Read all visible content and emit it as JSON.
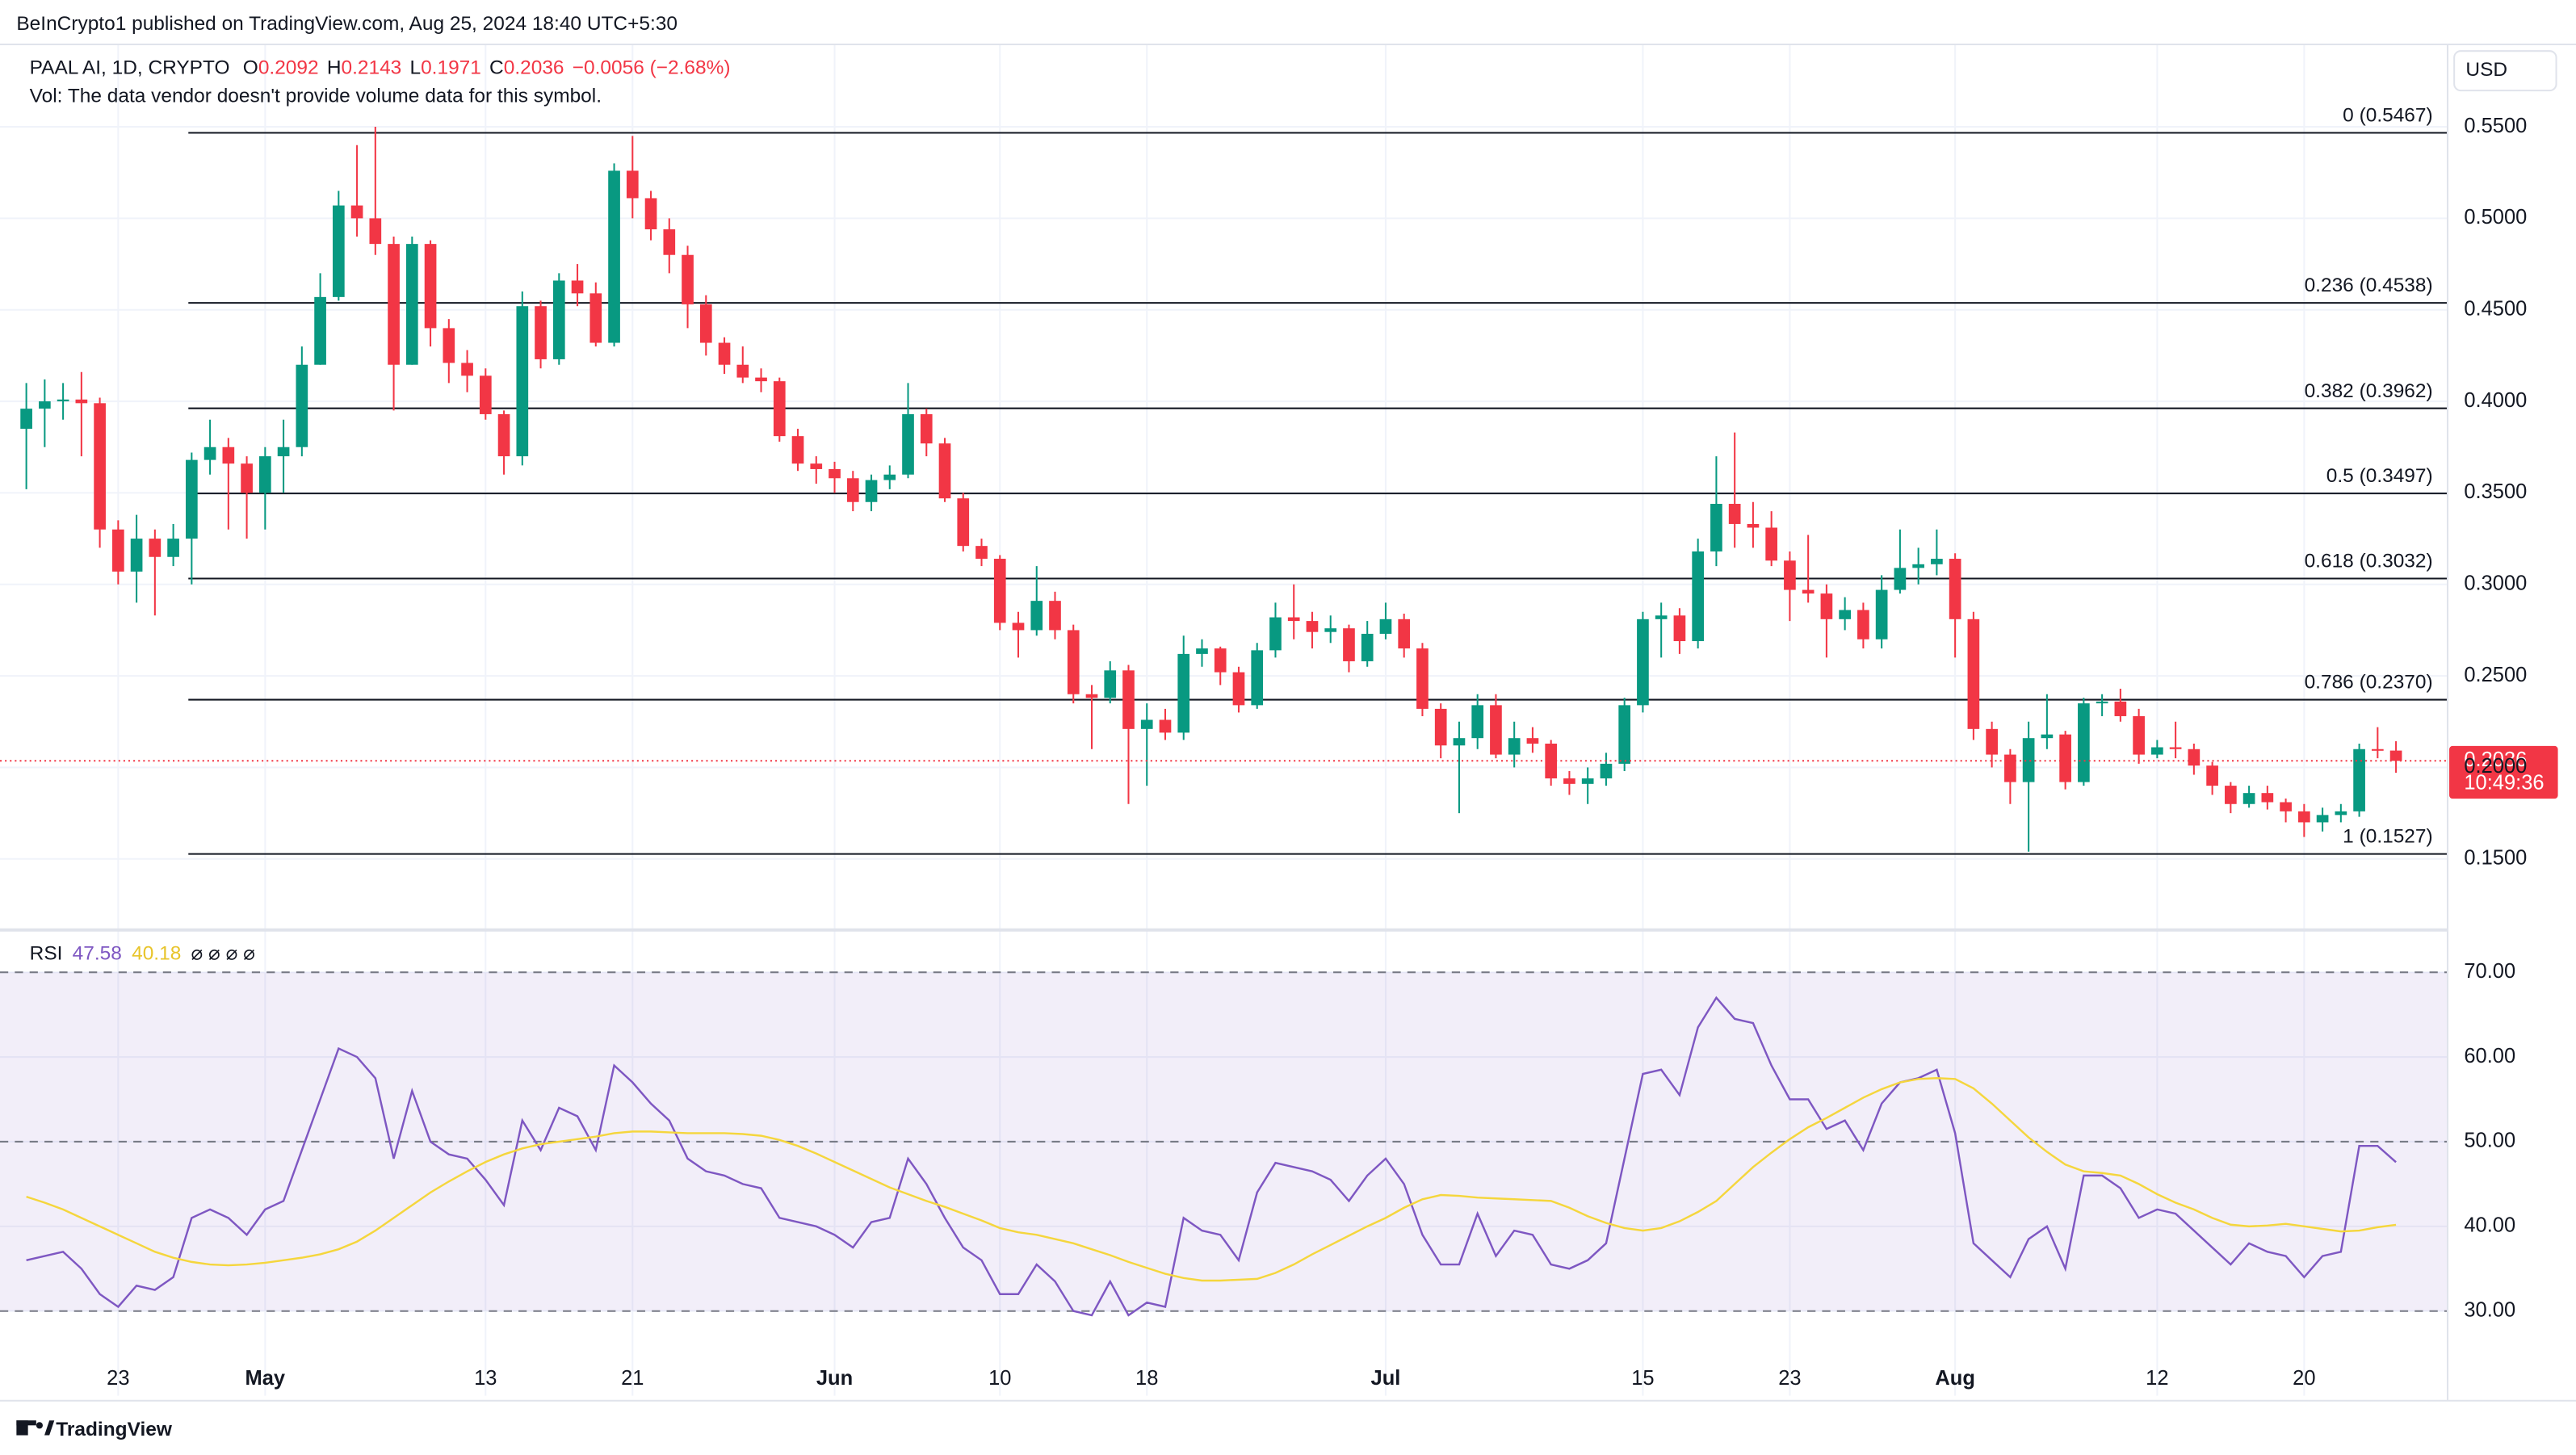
{
  "header": {
    "publisher": "BeInCrypto1 published on TradingView.com, Aug 25, 2024 18:40 UTC+5:30",
    "symbol": "PAAL AI, 1D, CRYPTO",
    "ohlc_keys": [
      "O",
      "H",
      "L",
      "C"
    ],
    "change": "−0.0056 (−2.68%)",
    "volume_note": "Vol: The data vendor doesn't provide volume data for this symbol.",
    "currency": "USD",
    "countdown": "10:49:36",
    "brand": "TradingView"
  },
  "chart_data": [
    {
      "type": "candlestick",
      "categories": [
        null,
        null,
        null,
        null,
        null,
        "23",
        null,
        null,
        null,
        null,
        null,
        null,
        null,
        "May",
        null,
        null,
        null,
        null,
        null,
        null,
        null,
        null,
        null,
        null,
        null,
        "13",
        null,
        null,
        null,
        null,
        null,
        null,
        null,
        "21",
        null,
        null,
        null,
        null,
        null,
        null,
        null,
        null,
        null,
        null,
        "Jun",
        null,
        null,
        null,
        null,
        null,
        null,
        null,
        null,
        "10",
        null,
        null,
        null,
        null,
        null,
        null,
        null,
        "18",
        null,
        null,
        null,
        null,
        null,
        null,
        null,
        null,
        null,
        null,
        null,
        null,
        "Jul",
        null,
        null,
        null,
        null,
        null,
        null,
        null,
        null,
        null,
        null,
        null,
        null,
        null,
        "15",
        null,
        null,
        null,
        null,
        null,
        null,
        null,
        "23",
        null,
        null,
        null,
        null,
        null,
        null,
        null,
        null,
        "Aug",
        null,
        null,
        null,
        null,
        null,
        null,
        null,
        null,
        null,
        null,
        "12",
        null,
        null,
        null,
        null,
        null,
        null,
        null,
        "20",
        null,
        null,
        null,
        null,
        null
      ],
      "open": [
        0.385,
        0.396,
        0.4,
        0.401,
        0.399,
        0.33,
        0.307,
        0.325,
        0.315,
        0.325,
        0.368,
        0.375,
        0.366,
        0.35,
        0.37,
        0.375,
        0.42,
        0.457,
        0.507,
        0.5,
        0.486,
        0.42,
        0.486,
        0.44,
        0.421,
        0.414,
        0.393,
        0.37,
        0.452,
        0.423,
        0.466,
        0.459,
        0.432,
        0.526,
        0.511,
        0.494,
        0.48,
        0.453,
        0.432,
        0.42,
        0.413,
        0.411,
        0.381,
        0.366,
        0.363,
        0.358,
        0.345,
        0.357,
        0.36,
        0.393,
        0.377,
        0.347,
        0.321,
        0.314,
        0.279,
        0.275,
        0.291,
        0.275,
        0.24,
        0.238,
        0.253,
        0.221,
        0.226,
        0.219,
        0.262,
        0.265,
        0.252,
        0.234,
        0.264,
        0.282,
        0.28,
        0.274,
        0.276,
        0.258,
        0.273,
        0.281,
        0.265,
        0.232,
        0.212,
        0.216,
        0.234,
        0.207,
        0.216,
        0.213,
        0.194,
        0.191,
        0.194,
        0.202,
        0.234,
        0.281,
        0.283,
        0.269,
        0.318,
        0.344,
        0.333,
        0.331,
        0.313,
        0.297,
        0.295,
        0.281,
        0.286,
        0.27,
        0.297,
        0.309,
        0.311,
        0.314,
        0.281,
        0.221,
        0.207,
        0.192,
        0.216,
        0.218,
        0.192,
        0.235,
        0.236,
        0.228,
        0.207,
        0.211,
        0.21,
        0.201,
        0.19,
        0.18,
        0.186,
        0.181,
        0.176,
        0.17,
        0.174,
        0.176,
        0.21,
        0.2092
      ],
      "high": [
        0.41,
        0.412,
        0.41,
        0.416,
        0.402,
        0.335,
        0.338,
        0.33,
        0.333,
        0.372,
        0.39,
        0.38,
        0.37,
        0.375,
        0.39,
        0.43,
        0.47,
        0.515,
        0.54,
        0.55,
        0.49,
        0.49,
        0.488,
        0.445,
        0.428,
        0.418,
        0.395,
        0.46,
        0.455,
        0.47,
        0.475,
        0.465,
        0.53,
        0.545,
        0.515,
        0.5,
        0.485,
        0.458,
        0.435,
        0.43,
        0.418,
        0.413,
        0.385,
        0.37,
        0.367,
        0.362,
        0.36,
        0.365,
        0.41,
        0.396,
        0.38,
        0.35,
        0.325,
        0.316,
        0.285,
        0.31,
        0.296,
        0.278,
        0.245,
        0.258,
        0.256,
        0.235,
        0.232,
        0.272,
        0.27,
        0.266,
        0.255,
        0.268,
        0.29,
        0.3,
        0.285,
        0.283,
        0.278,
        0.28,
        0.29,
        0.284,
        0.268,
        0.235,
        0.225,
        0.24,
        0.24,
        0.225,
        0.222,
        0.215,
        0.198,
        0.2,
        0.208,
        0.238,
        0.285,
        0.29,
        0.287,
        0.325,
        0.37,
        0.383,
        0.345,
        0.34,
        0.318,
        0.327,
        0.3,
        0.293,
        0.29,
        0.305,
        0.33,
        0.32,
        0.33,
        0.317,
        0.285,
        0.225,
        0.21,
        0.225,
        0.24,
        0.22,
        0.238,
        0.24,
        0.243,
        0.232,
        0.215,
        0.225,
        0.213,
        0.203,
        0.192,
        0.19,
        0.19,
        0.183,
        0.18,
        0.178,
        0.18,
        0.213,
        0.222,
        0.2143
      ],
      "low": [
        0.352,
        0.375,
        0.39,
        0.37,
        0.32,
        0.3,
        0.29,
        0.283,
        0.31,
        0.3,
        0.36,
        0.33,
        0.325,
        0.33,
        0.35,
        0.37,
        0.42,
        0.455,
        0.49,
        0.48,
        0.395,
        0.42,
        0.43,
        0.41,
        0.405,
        0.39,
        0.36,
        0.365,
        0.418,
        0.42,
        0.452,
        0.43,
        0.43,
        0.5,
        0.488,
        0.47,
        0.44,
        0.425,
        0.415,
        0.41,
        0.405,
        0.378,
        0.362,
        0.355,
        0.35,
        0.34,
        0.34,
        0.352,
        0.358,
        0.37,
        0.345,
        0.318,
        0.31,
        0.275,
        0.26,
        0.272,
        0.27,
        0.235,
        0.21,
        0.235,
        0.18,
        0.19,
        0.215,
        0.215,
        0.255,
        0.245,
        0.23,
        0.232,
        0.26,
        0.27,
        0.265,
        0.268,
        0.252,
        0.255,
        0.27,
        0.26,
        0.228,
        0.205,
        0.175,
        0.21,
        0.205,
        0.2,
        0.208,
        0.19,
        0.185,
        0.18,
        0.19,
        0.198,
        0.23,
        0.26,
        0.262,
        0.265,
        0.31,
        0.32,
        0.32,
        0.31,
        0.28,
        0.29,
        0.26,
        0.275,
        0.265,
        0.265,
        0.295,
        0.3,
        0.305,
        0.26,
        0.215,
        0.2,
        0.18,
        0.154,
        0.21,
        0.188,
        0.19,
        0.228,
        0.225,
        0.202,
        0.205,
        0.205,
        0.196,
        0.185,
        0.175,
        0.178,
        0.177,
        0.17,
        0.162,
        0.165,
        0.17,
        0.173,
        0.205,
        0.1971
      ],
      "close": [
        0.396,
        0.4,
        0.401,
        0.399,
        0.33,
        0.307,
        0.325,
        0.315,
        0.325,
        0.368,
        0.375,
        0.366,
        0.35,
        0.37,
        0.375,
        0.42,
        0.457,
        0.507,
        0.5,
        0.486,
        0.42,
        0.486,
        0.44,
        0.421,
        0.414,
        0.393,
        0.37,
        0.452,
        0.423,
        0.466,
        0.459,
        0.432,
        0.526,
        0.511,
        0.494,
        0.48,
        0.453,
        0.432,
        0.42,
        0.413,
        0.411,
        0.381,
        0.366,
        0.363,
        0.358,
        0.345,
        0.357,
        0.36,
        0.393,
        0.377,
        0.347,
        0.321,
        0.314,
        0.279,
        0.275,
        0.291,
        0.275,
        0.24,
        0.238,
        0.253,
        0.221,
        0.226,
        0.219,
        0.262,
        0.265,
        0.252,
        0.234,
        0.264,
        0.282,
        0.28,
        0.274,
        0.276,
        0.258,
        0.273,
        0.281,
        0.265,
        0.232,
        0.212,
        0.216,
        0.234,
        0.207,
        0.216,
        0.213,
        0.194,
        0.191,
        0.194,
        0.202,
        0.234,
        0.281,
        0.283,
        0.269,
        0.318,
        0.344,
        0.333,
        0.331,
        0.313,
        0.297,
        0.295,
        0.281,
        0.286,
        0.27,
        0.297,
        0.309,
        0.311,
        0.314,
        0.281,
        0.221,
        0.207,
        0.192,
        0.216,
        0.218,
        0.192,
        0.235,
        0.236,
        0.228,
        0.207,
        0.211,
        0.21,
        0.201,
        0.19,
        0.18,
        0.186,
        0.181,
        0.176,
        0.17,
        0.174,
        0.176,
        0.21,
        0.2092,
        0.2036
      ],
      "up_color": "#089981",
      "down_color": "#f23645",
      "ylim": [
        0.113,
        0.595
      ],
      "yticks": [
        {
          "value": 0.15,
          "label": "0.1500"
        },
        {
          "value": 0.2,
          "label": "0.2000"
        },
        {
          "value": 0.25,
          "label": "0.2500"
        },
        {
          "value": 0.3,
          "label": "0.3000"
        },
        {
          "value": 0.35,
          "label": "0.3500"
        },
        {
          "value": 0.4,
          "label": "0.4000"
        },
        {
          "value": 0.45,
          "label": "0.4500"
        },
        {
          "value": 0.5,
          "label": "0.5000"
        },
        {
          "value": 0.55,
          "label": "0.5500"
        }
      ],
      "grid": true,
      "last_price_line": true,
      "fib_levels": [
        {
          "price": 0.5467,
          "label": "0 (0.5467)"
        },
        {
          "price": 0.4538,
          "label": "0.236 (0.4538)"
        },
        {
          "price": 0.3962,
          "label": "0.382 (0.3962)"
        },
        {
          "price": 0.3497,
          "label": "0.5 (0.3497)"
        },
        {
          "price": 0.3032,
          "label": "0.618 (0.3032)"
        },
        {
          "price": 0.237,
          "label": "0.786 (0.2370)"
        },
        {
          "price": 0.1527,
          "label": "1 (0.1527)"
        }
      ]
    },
    {
      "type": "line",
      "title": "RSI",
      "extras": "⌀ ⌀ ⌀ ⌀",
      "series": [
        {
          "color": "#7e57c2",
          "values": [
            36,
            36.5,
            37,
            35,
            32,
            30.5,
            33,
            32.5,
            34,
            41,
            42,
            41,
            39,
            42,
            43,
            49,
            55,
            61,
            60,
            57.5,
            48,
            56,
            50,
            48.5,
            48,
            45.5,
            42.5,
            52.5,
            49,
            54,
            53,
            49,
            59,
            57,
            54.5,
            52.5,
            48,
            46.5,
            46,
            45,
            44.5,
            41,
            40.5,
            40,
            39,
            37.5,
            40.5,
            41,
            48,
            45,
            41,
            37.5,
            36,
            32,
            32,
            35.5,
            33.5,
            30,
            29.5,
            33.5,
            29.5,
            31,
            30.5,
            41,
            39.5,
            39,
            36,
            44,
            47.5,
            47,
            46.5,
            45.5,
            43,
            46,
            48,
            45,
            39,
            35.5,
            35.5,
            41.5,
            36.5,
            39.5,
            39,
            35.5,
            35,
            36,
            38,
            48,
            58,
            58.5,
            55.5,
            63.5,
            67,
            64.5,
            64,
            59,
            55,
            55,
            51.5,
            52.5,
            49,
            54.5,
            57,
            57.5,
            58.5,
            51,
            38,
            36,
            34,
            38.5,
            40,
            35,
            46,
            46,
            44.5,
            41,
            42,
            41.5,
            39.5,
            37.5,
            35.5,
            38,
            37,
            36.5,
            34,
            36.5,
            37,
            49.5,
            49.5,
            47.58
          ]
        },
        {
          "color": "#f5d63d",
          "values": [
            43.5,
            42.8,
            42,
            41,
            40,
            39,
            38,
            37,
            36.3,
            35.8,
            35.5,
            35.4,
            35.5,
            35.7,
            36,
            36.3,
            36.7,
            37.3,
            38.2,
            39.5,
            41,
            42.5,
            44,
            45.3,
            46.5,
            47.6,
            48.5,
            49.2,
            49.7,
            50,
            50.3,
            50.6,
            51,
            51.2,
            51.2,
            51.1,
            51,
            51,
            51,
            50.9,
            50.7,
            50.2,
            49.5,
            48.6,
            47.6,
            46.6,
            45.6,
            44.6,
            43.8,
            43,
            42.3,
            41.5,
            40.7,
            39.8,
            39.3,
            39,
            38.5,
            38,
            37.3,
            36.6,
            35.8,
            35.1,
            34.4,
            33.9,
            33.6,
            33.6,
            33.7,
            33.8,
            34.5,
            35.5,
            36.7,
            37.8,
            38.9,
            40,
            41,
            42.2,
            43.2,
            43.7,
            43.6,
            43.4,
            43.3,
            43.2,
            43.1,
            43,
            42.2,
            41.2,
            40.4,
            39.8,
            39.5,
            39.8,
            40.6,
            41.7,
            43,
            45,
            47,
            48.7,
            50.3,
            51.7,
            52.8,
            54,
            55.2,
            56.2,
            57,
            57.4,
            57.5,
            57.4,
            56.3,
            54.5,
            52.5,
            50.5,
            48.8,
            47.3,
            46.5,
            46.3,
            46,
            45,
            43.8,
            42.8,
            42,
            41,
            40.2,
            40,
            40.1,
            40.3,
            40,
            39.7,
            39.4,
            39.5,
            39.9,
            40.18
          ]
        }
      ],
      "ylim": [
        20,
        75
      ],
      "yticks": [
        {
          "value": 30,
          "label": "30.00"
        },
        {
          "value": 40,
          "label": "40.00"
        },
        {
          "value": 50,
          "label": "50.00"
        },
        {
          "value": 60,
          "label": "60.00"
        },
        {
          "value": 70,
          "label": "70.00"
        }
      ],
      "bands": [
        70,
        50,
        30
      ],
      "grid": true
    }
  ]
}
